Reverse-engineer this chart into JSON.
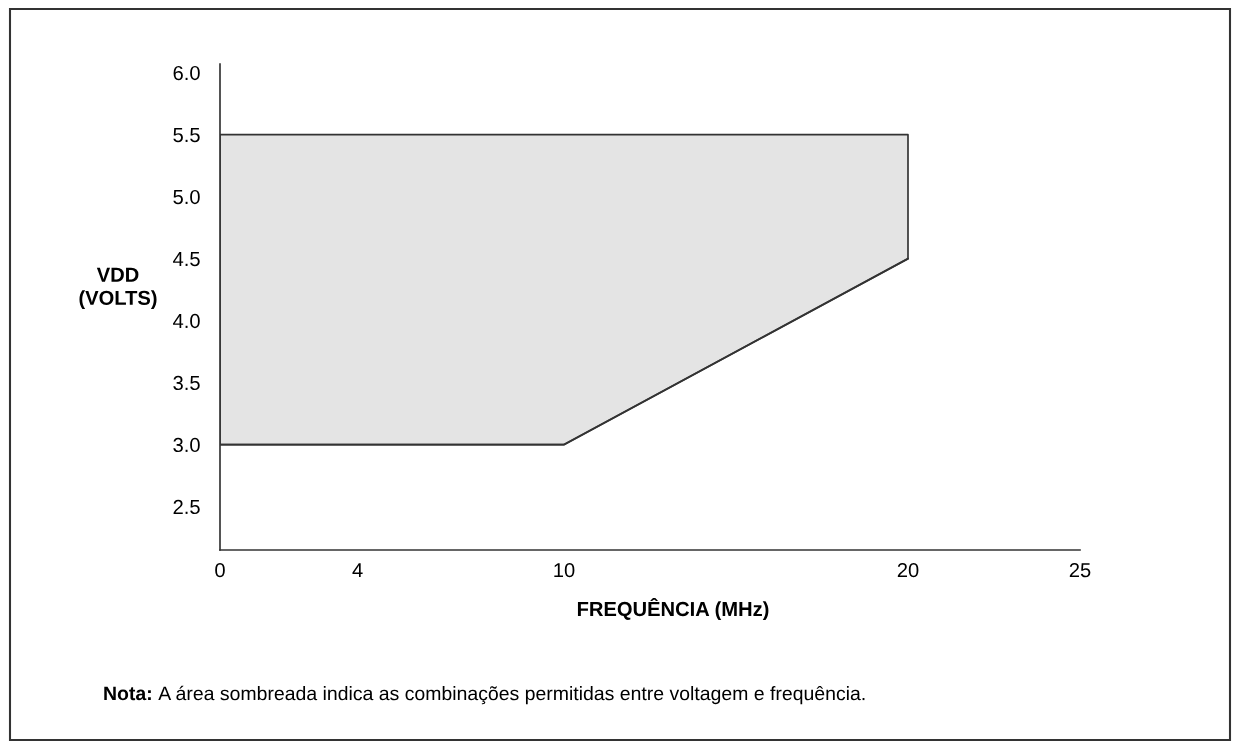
{
  "chart_data": {
    "type": "line",
    "x": [
      0,
      10,
      20
    ],
    "series": [
      {
        "color": "#333333",
        "values": [
          3.0,
          3.0,
          4.5
        ],
        "lower": [
          3.0,
          3.0,
          4.5
        ],
        "upper": [
          5.5,
          5.5,
          5.5
        ]
      }
    ],
    "xlabel": "FREQUÊNCIA (MHz)",
    "ylabel": "VDD\n(VOLTS)",
    "annotations": [
      "Nota: A área sombreada indica as combinações permitidas entre voltagem e frequência."
    ],
    "xlim": [
      0,
      25
    ],
    "xticks": [
      0,
      4,
      10,
      20,
      25
    ],
    "ylim": [
      2.15,
      6.07
    ],
    "yticks": [
      2.5,
      {
        "value": 3,
        "label": "3.0"
      },
      3.5,
      {
        "value": 4,
        "label": "4.0"
      },
      4.5,
      {
        "value": 5,
        "label": "5.0"
      },
      5.5,
      {
        "value": 6,
        "label": "6.0"
      }
    ],
    "grid": false
  }
}
